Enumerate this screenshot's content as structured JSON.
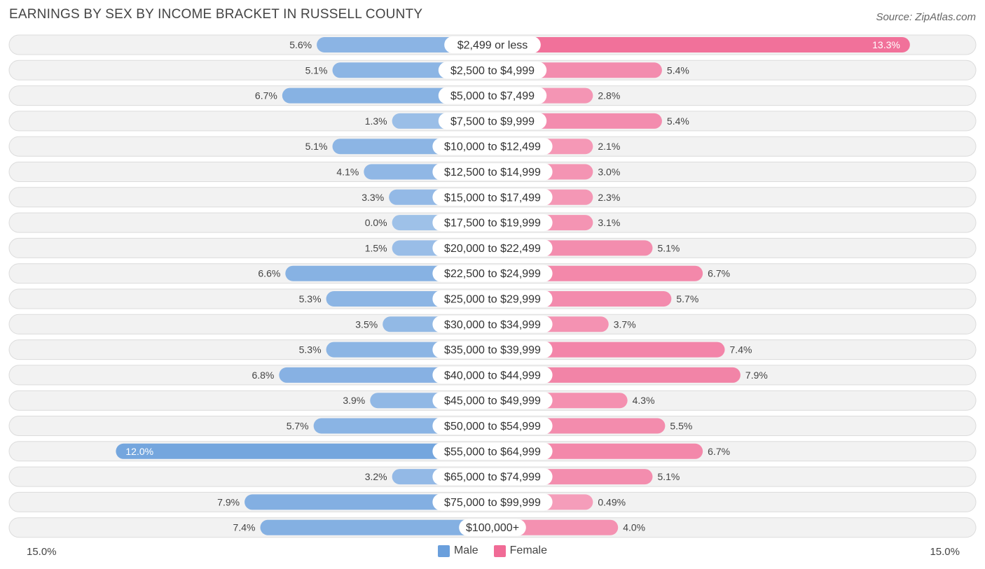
{
  "header": {
    "title": "EARNINGS BY SEX BY INCOME BRACKET IN RUSSELL COUNTY",
    "source": "Source: ZipAtlas.com"
  },
  "colors": {
    "male": "#6a9fdc",
    "female": "#f06b96"
  },
  "chart_data": {
    "type": "bar",
    "orientation": "horizontal-diverging",
    "title": "EARNINGS BY SEX BY INCOME BRACKET IN RUSSELL COUNTY",
    "xlim": [
      -15,
      15
    ],
    "axis_labels": {
      "left": "15.0%",
      "right": "15.0%"
    },
    "legend": [
      "Male",
      "Female"
    ],
    "categories": [
      "$2,499 or less",
      "$2,500 to $4,999",
      "$5,000 to $7,499",
      "$7,500 to $9,999",
      "$10,000 to $12,499",
      "$12,500 to $14,999",
      "$15,000 to $17,499",
      "$17,500 to $19,999",
      "$20,000 to $22,499",
      "$22,500 to $24,999",
      "$25,000 to $29,999",
      "$30,000 to $34,999",
      "$35,000 to $39,999",
      "$40,000 to $44,999",
      "$45,000 to $49,999",
      "$50,000 to $54,999",
      "$55,000 to $64,999",
      "$65,000 to $74,999",
      "$75,000 to $99,999",
      "$100,000+"
    ],
    "series": [
      {
        "name": "Male",
        "values": [
          5.6,
          5.1,
          6.7,
          1.3,
          5.1,
          4.1,
          3.3,
          0.0,
          1.5,
          6.6,
          5.3,
          3.5,
          5.3,
          6.8,
          3.9,
          5.7,
          12.0,
          3.2,
          7.9,
          7.4
        ],
        "labels": [
          "5.6%",
          "5.1%",
          "6.7%",
          "1.3%",
          "5.1%",
          "4.1%",
          "3.3%",
          "0.0%",
          "1.5%",
          "6.6%",
          "5.3%",
          "3.5%",
          "5.3%",
          "6.8%",
          "3.9%",
          "5.7%",
          "12.0%",
          "3.2%",
          "7.9%",
          "7.4%"
        ]
      },
      {
        "name": "Female",
        "values": [
          13.3,
          5.4,
          2.8,
          5.4,
          2.1,
          3.0,
          2.3,
          3.1,
          5.1,
          6.7,
          5.7,
          3.7,
          7.4,
          7.9,
          4.3,
          5.5,
          6.7,
          5.1,
          0.49,
          4.0
        ],
        "labels": [
          "13.3%",
          "5.4%",
          "2.8%",
          "5.4%",
          "2.1%",
          "3.0%",
          "2.3%",
          "3.1%",
          "5.1%",
          "6.7%",
          "5.7%",
          "3.7%",
          "7.4%",
          "7.9%",
          "4.3%",
          "5.5%",
          "6.7%",
          "5.1%",
          "0.49%",
          "4.0%"
        ]
      }
    ]
  }
}
